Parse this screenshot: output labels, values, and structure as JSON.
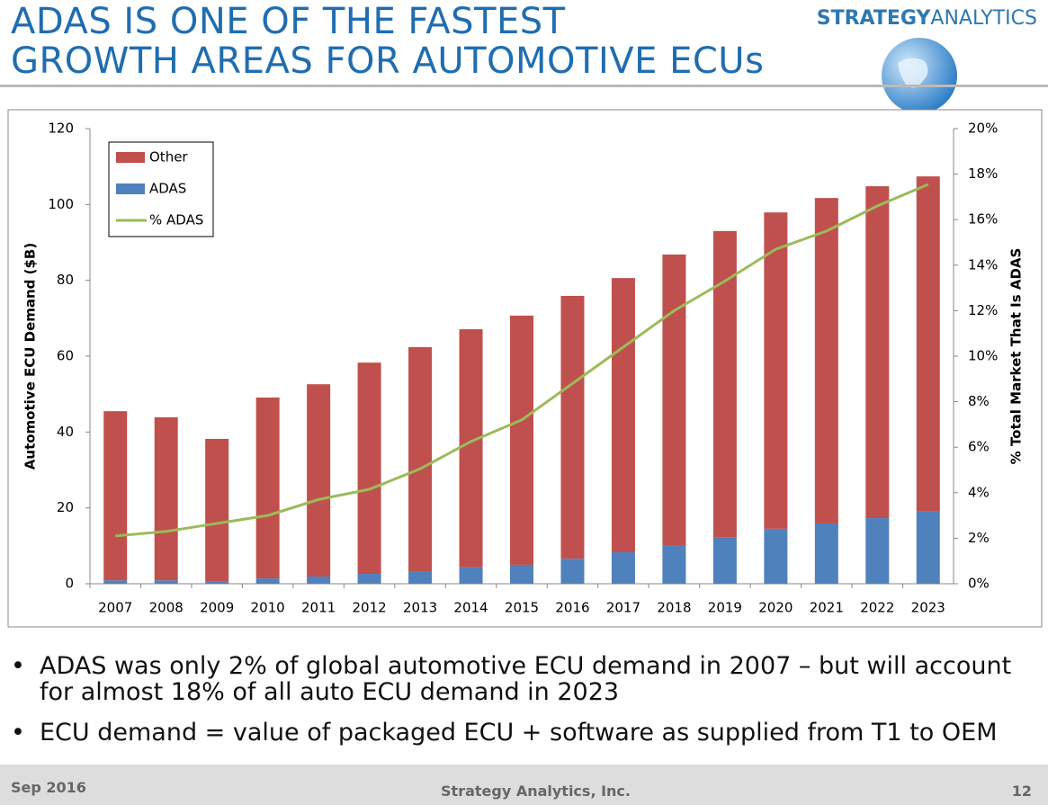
{
  "header": {
    "title": [
      "ADAS IS ONE OF THE FASTEST",
      "GROWTH AREAS FOR AUTOMOTIVE ECUs"
    ],
    "brand": [
      "STRATEGY",
      "ANALYTICS"
    ]
  },
  "chart_data": {
    "type": "bar",
    "stacked": true,
    "ylabel": "Automotive ECU Demand ($B)",
    "y2label": "% Total Market That Is ADAS",
    "categories": [
      "2007",
      "2008",
      "2009",
      "2010",
      "2011",
      "2012",
      "2013",
      "2014",
      "2015",
      "2016",
      "2017",
      "2018",
      "2019",
      "2020",
      "2021",
      "2022",
      "2023"
    ],
    "series": [
      {
        "name": "Other",
        "type": "bar",
        "color": "#c0504d",
        "values": [
          44.6,
          43,
          37.5,
          47.7,
          50.7,
          55.7,
          59.3,
          62.8,
          65.7,
          69.3,
          72.3,
          76.6,
          80.7,
          83.4,
          85.8,
          87.5,
          88.4
        ]
      },
      {
        "name": "ADAS",
        "type": "bar",
        "color": "#4f81bd",
        "values": [
          0.9,
          0.9,
          0.7,
          1.4,
          1.9,
          2.6,
          3.1,
          4.3,
          5,
          6.6,
          8.3,
          10.2,
          12.3,
          14.5,
          15.9,
          17.3,
          19
        ]
      },
      {
        "name": "% ADAS",
        "type": "line",
        "axis": "y2",
        "color": "#9bbb59",
        "values": [
          2.1,
          2.3,
          2.65,
          3,
          3.7,
          4.15,
          5.05,
          6.25,
          7.2,
          8.8,
          10.4,
          12,
          13.3,
          14.7,
          15.5,
          16.6,
          17.55
        ]
      }
    ],
    "ylim": [
      0,
      120
    ],
    "yticks": [
      0,
      20,
      40,
      60,
      80,
      100,
      120
    ],
    "y2lim": [
      0,
      20
    ],
    "y2ticks": [
      {
        "value": 0,
        "label": "0%"
      },
      {
        "value": 2,
        "label": "2%"
      },
      {
        "value": 4,
        "label": "4%"
      },
      {
        "value": 6,
        "label": "6%"
      },
      {
        "value": 8,
        "label": "8%"
      },
      {
        "value": 10,
        "label": "10%"
      },
      {
        "value": 12,
        "label": "12%"
      },
      {
        "value": 14,
        "label": "14%"
      },
      {
        "value": 16,
        "label": "16%"
      },
      {
        "value": 18,
        "label": "18%"
      },
      {
        "value": 20,
        "label": "20%"
      }
    ],
    "legend": "upper-left"
  },
  "bullets": [
    "ADAS was only 2% of global automotive ECU demand in 2007 – but will account for almost 18% of all auto ECU demand in 2023",
    "ECU demand = value of packaged ECU + software as supplied from T1 to OEM"
  ],
  "footer": {
    "date": "Sep 2016",
    "company": "Strategy Analytics, Inc.",
    "page": "12"
  }
}
